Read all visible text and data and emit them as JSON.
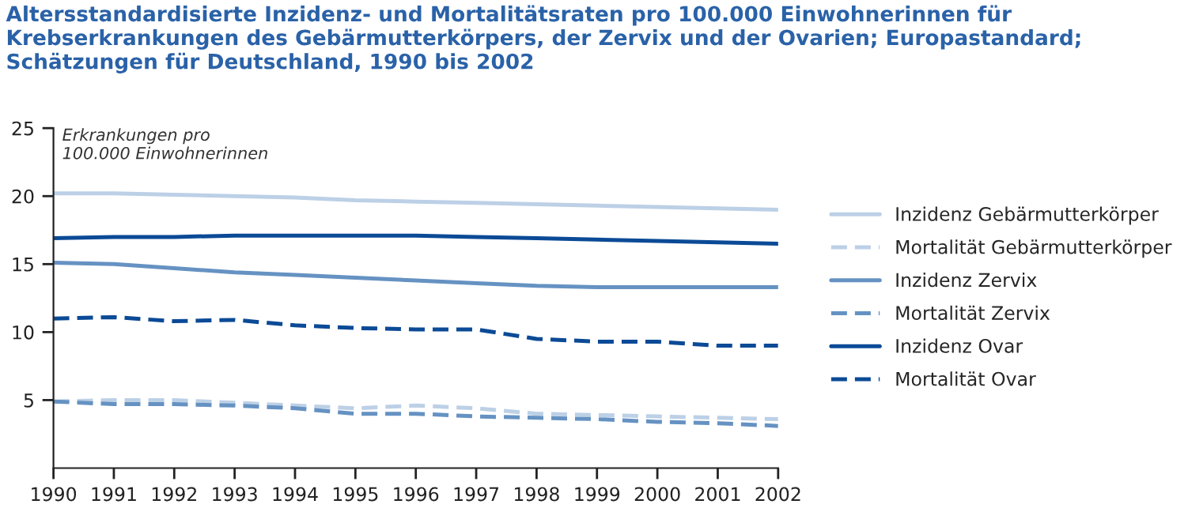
{
  "chart_data": {
    "type": "line",
    "title": "Altersstandardisierte Inzidenz- und Mortalitätsraten pro 100.000 Einwohnerinnen für Krebserkrankungen des Gebärmutterkörpers, der Zervix und der Ovarien; Europastandard; Schätzungen für Deutschland, 1990 bis 2002",
    "ylabel": "Erkrankungen pro\n100.000 Einwohnerinnen",
    "x": [
      1990,
      1991,
      1992,
      1993,
      1994,
      1995,
      1996,
      1997,
      1998,
      1999,
      2000,
      2001,
      2002
    ],
    "series": [
      {
        "name": "Inzidenz Gebärmutterkörper",
        "color": "#bcd0e6",
        "line_style": "solid",
        "values": [
          20.2,
          20.2,
          20.1,
          20.0,
          19.9,
          19.7,
          19.6,
          19.5,
          19.4,
          19.3,
          19.2,
          19.1,
          19.0
        ]
      },
      {
        "name": "Mortalität Gebärmutterkörper",
        "color": "#bcd0e6",
        "line_style": "dashed",
        "values": [
          4.9,
          5.0,
          5.0,
          4.8,
          4.6,
          4.4,
          4.6,
          4.4,
          4.0,
          3.9,
          3.8,
          3.7,
          3.6
        ]
      },
      {
        "name": "Inzidenz Zervix",
        "color": "#6592c2",
        "line_style": "solid",
        "values": [
          15.1,
          15.0,
          14.7,
          14.4,
          14.2,
          14.0,
          13.8,
          13.6,
          13.4,
          13.3,
          13.3,
          13.3,
          13.3
        ]
      },
      {
        "name": "Mortalität Zervix",
        "color": "#6592c2",
        "line_style": "dashed",
        "values": [
          4.9,
          4.7,
          4.7,
          4.6,
          4.4,
          4.0,
          4.0,
          3.8,
          3.7,
          3.6,
          3.4,
          3.3,
          3.1
        ]
      },
      {
        "name": "Inzidenz Ovar",
        "color": "#0b4a96",
        "line_style": "solid",
        "values": [
          16.9,
          17.0,
          17.0,
          17.1,
          17.1,
          17.1,
          17.1,
          17.0,
          16.9,
          16.8,
          16.7,
          16.6,
          16.5
        ]
      },
      {
        "name": "Mortalität Ovar",
        "color": "#0b4a96",
        "line_style": "dashed",
        "values": [
          11.0,
          11.1,
          10.8,
          10.9,
          10.5,
          10.3,
          10.2,
          10.2,
          9.5,
          9.3,
          9.3,
          9.0,
          9.0
        ]
      }
    ],
    "xlim": [
      1990,
      2002
    ],
    "xticks": [
      1990,
      1991,
      1992,
      1993,
      1994,
      1995,
      1996,
      1997,
      1998,
      1999,
      2000,
      2001,
      2002
    ],
    "ylim": [
      0,
      25
    ],
    "yticks": [
      5,
      10,
      15,
      20,
      25
    ],
    "grid": false,
    "legend": "right",
    "marker": "none"
  }
}
